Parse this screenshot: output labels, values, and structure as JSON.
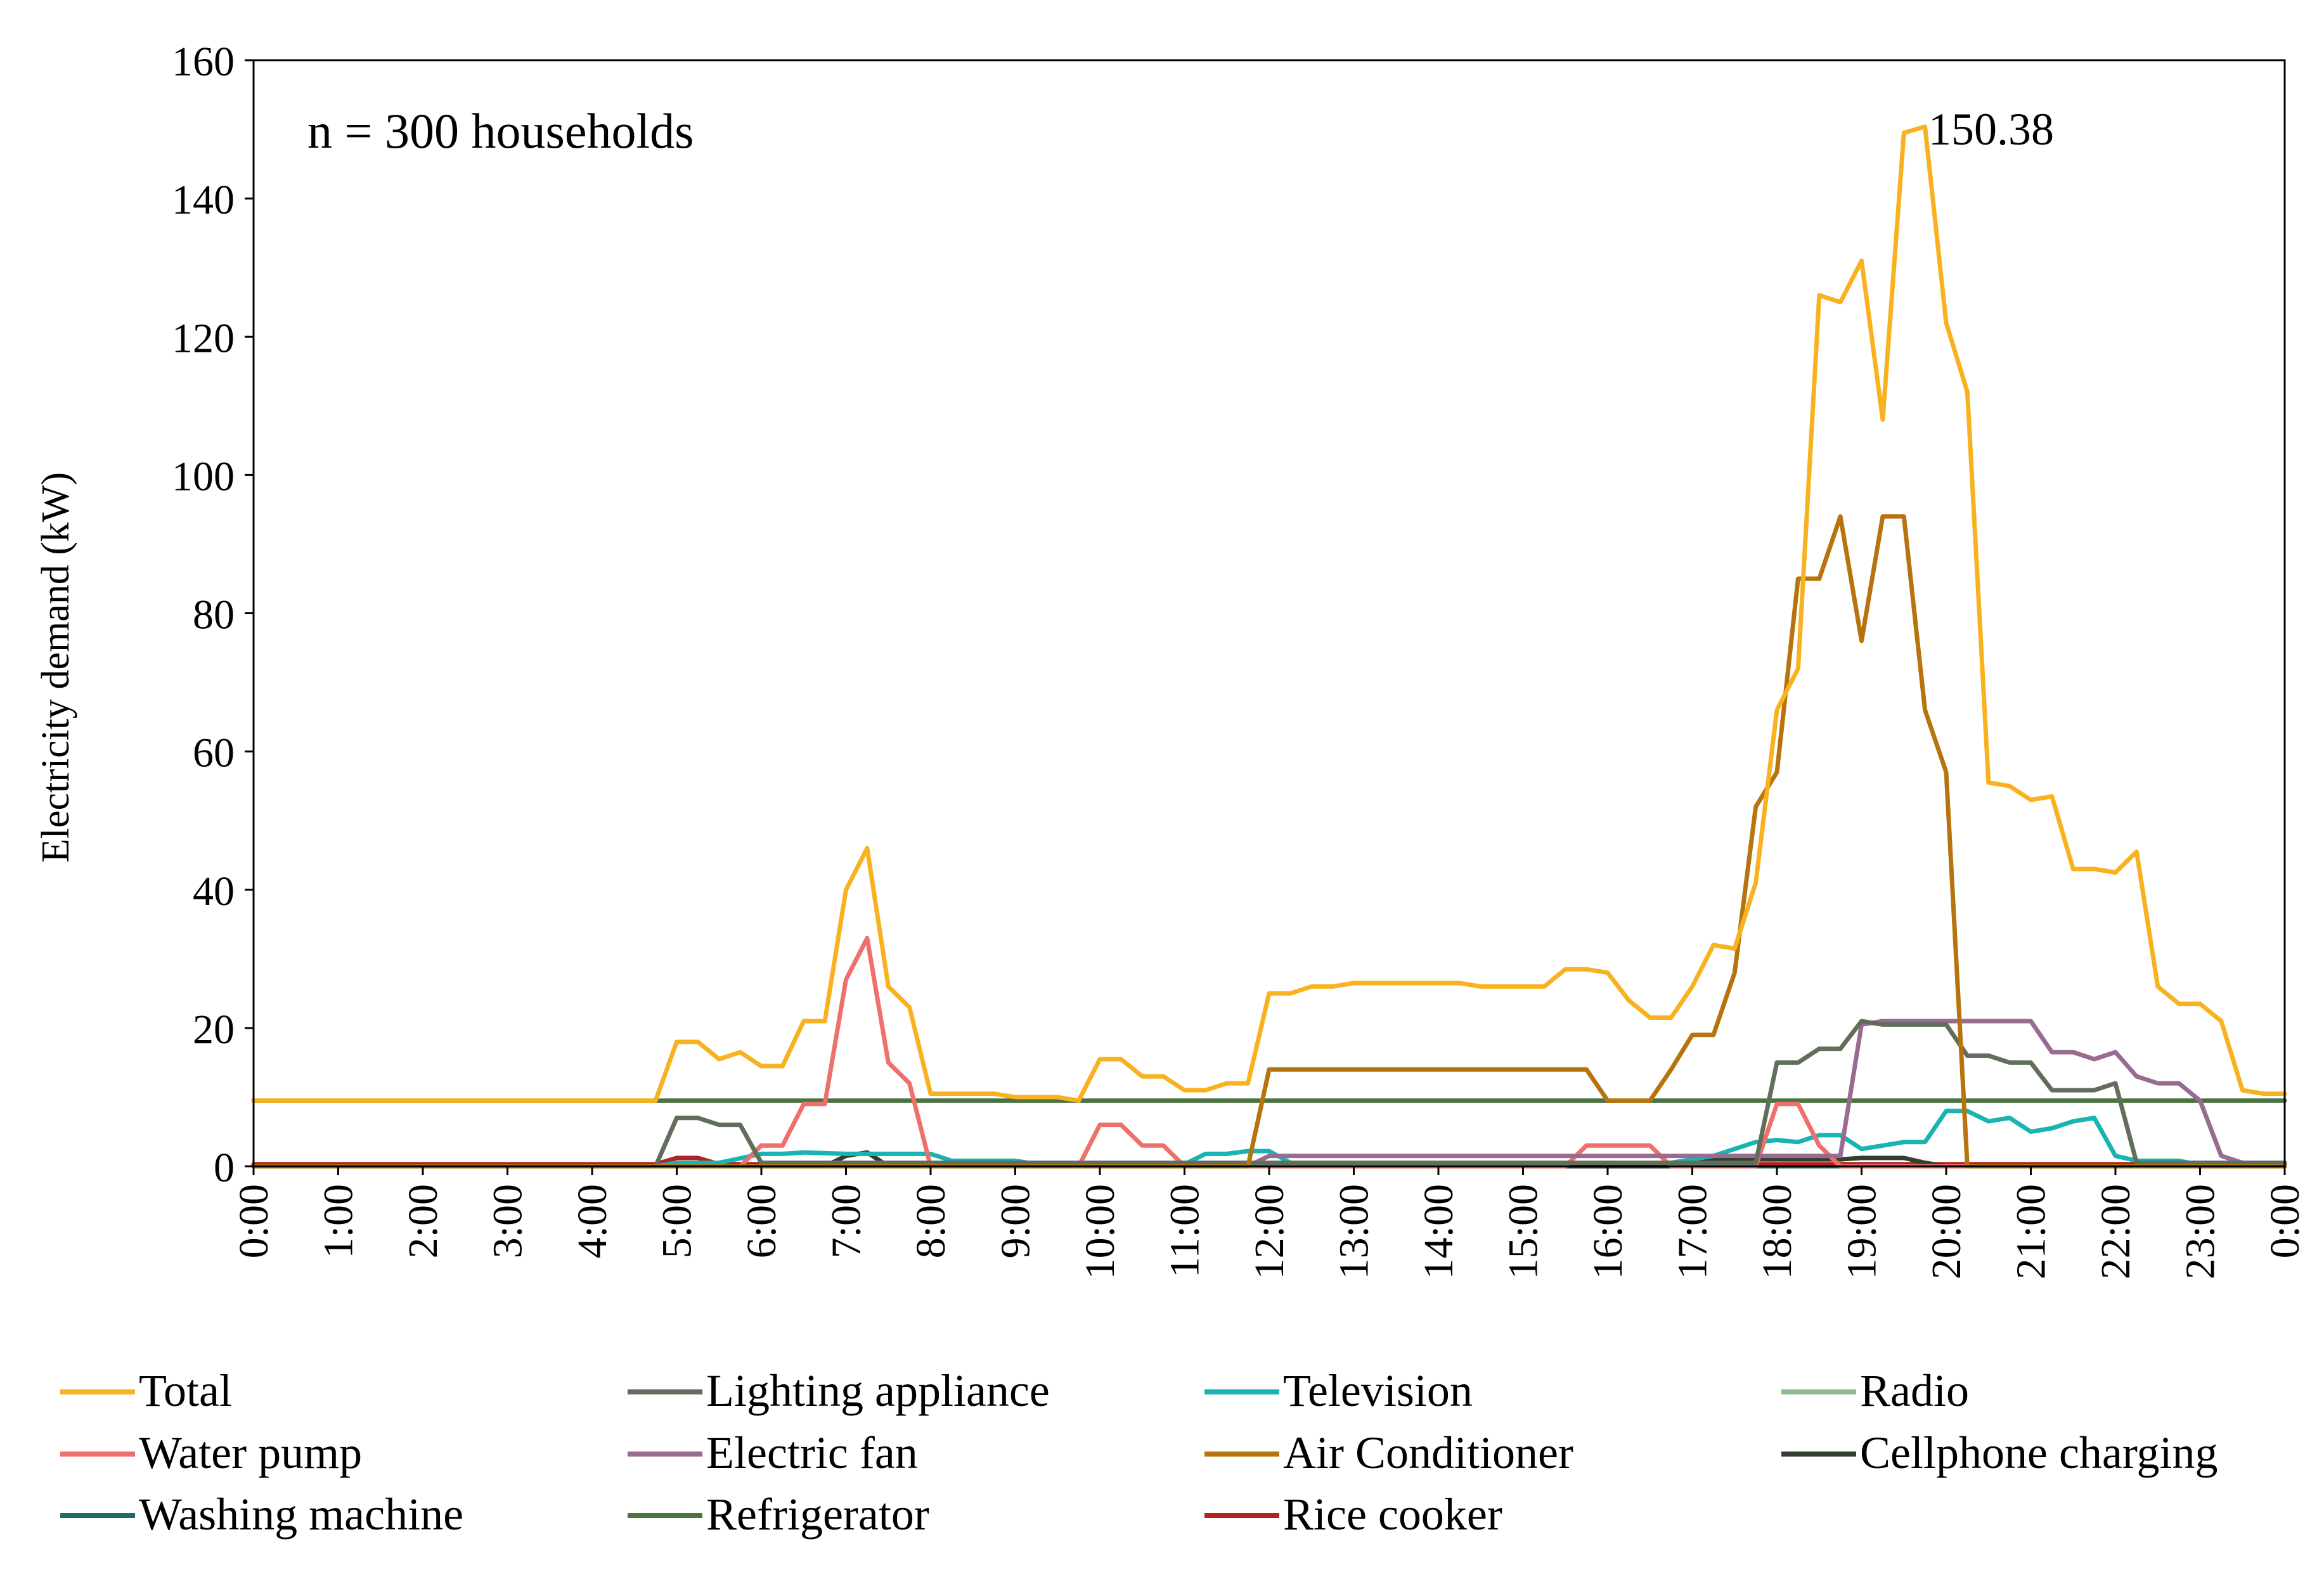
{
  "chart_data": {
    "type": "line",
    "title": "",
    "xlabel": "",
    "ylabel": "Electricity demand (kW)",
    "ylim": [
      0,
      160
    ],
    "yticks": [
      0,
      20,
      40,
      60,
      80,
      100,
      120,
      140,
      160
    ],
    "xticks": [
      "0:00",
      "1:00",
      "2:00",
      "3:00",
      "4:00",
      "5:00",
      "6:00",
      "7:00",
      "8:00",
      "9:00",
      "10:00",
      "11:00",
      "12:00",
      "13:00",
      "14:00",
      "15:00",
      "16:00",
      "17:00",
      "18:00",
      "19:00",
      "20:00",
      "21:00",
      "22:00",
      "23:00",
      "0:00"
    ],
    "x_unit": "hours",
    "x_range": [
      0,
      24
    ],
    "annotation": "n = 300 households",
    "peak_label": {
      "text": "150.38",
      "x": 19.25,
      "y": 150.38
    },
    "series": [
      {
        "name": "Refrigerator",
        "color": "#4a7340",
        "points": [
          [
            0,
            9.5
          ],
          [
            24,
            9.5
          ]
        ]
      },
      {
        "name": "Radio",
        "color": "#8fbc8f",
        "points": [
          [
            0,
            0.1
          ],
          [
            24,
            0.1
          ]
        ]
      },
      {
        "name": "Washing machine",
        "color": "#1f6b6b",
        "points": [
          [
            0,
            0
          ],
          [
            24,
            0
          ]
        ]
      },
      {
        "name": "Rice cooker",
        "color": "#b22222",
        "points": [
          [
            0,
            0.3
          ],
          [
            4.75,
            0.3
          ],
          [
            5,
            1.2
          ],
          [
            5.25,
            1.2
          ],
          [
            5.5,
            0.3
          ],
          [
            18.5,
            0.3
          ],
          [
            18.75,
            0.3
          ],
          [
            24,
            0.3
          ]
        ]
      },
      {
        "name": "Cellphone charging",
        "color": "#333f2e",
        "points": [
          [
            0,
            0
          ],
          [
            6.75,
            0
          ],
          [
            7,
            1.5
          ],
          [
            7.25,
            2
          ],
          [
            7.5,
            0
          ],
          [
            16.75,
            0
          ],
          [
            17,
            1
          ],
          [
            18.75,
            1
          ],
          [
            19,
            1.2
          ],
          [
            19.5,
            1.2
          ],
          [
            19.75,
            0.5
          ],
          [
            20,
            0
          ],
          [
            24,
            0
          ]
        ]
      },
      {
        "name": "Television",
        "color": "#1ab3b3",
        "points": [
          [
            0,
            0
          ],
          [
            4.75,
            0
          ],
          [
            5,
            0.5
          ],
          [
            5.5,
            0.5
          ],
          [
            6,
            1.8
          ],
          [
            6.25,
            1.8
          ],
          [
            6.5,
            2
          ],
          [
            7,
            1.8
          ],
          [
            8,
            1.8
          ],
          [
            8.25,
            0.8
          ],
          [
            9,
            0.8
          ],
          [
            9.25,
            0.3
          ],
          [
            11,
            0.3
          ],
          [
            11.25,
            1.8
          ],
          [
            11.5,
            1.8
          ],
          [
            11.75,
            2.2
          ],
          [
            12,
            2.2
          ],
          [
            12.25,
            0.5
          ],
          [
            16.75,
            0.5
          ],
          [
            17,
            1
          ],
          [
            17.25,
            1.5
          ],
          [
            17.5,
            2.5
          ],
          [
            17.75,
            3.5
          ],
          [
            18,
            3.8
          ],
          [
            18.25,
            3.5
          ],
          [
            18.5,
            4.5
          ],
          [
            18.75,
            4.5
          ],
          [
            19,
            2.5
          ],
          [
            19.25,
            3
          ],
          [
            19.5,
            3.5
          ],
          [
            19.75,
            3.5
          ],
          [
            20,
            8
          ],
          [
            20.25,
            8
          ],
          [
            20.5,
            6.5
          ],
          [
            20.75,
            7
          ],
          [
            21,
            5
          ],
          [
            21.25,
            5.5
          ],
          [
            21.5,
            6.5
          ],
          [
            21.75,
            7
          ],
          [
            22,
            1.5
          ],
          [
            22.25,
            0.8
          ],
          [
            22.75,
            0.8
          ],
          [
            23,
            0.2
          ],
          [
            24,
            0.2
          ]
        ]
      },
      {
        "name": "Water pump",
        "color": "#ef6f6c",
        "points": [
          [
            0,
            0
          ],
          [
            5.75,
            0
          ],
          [
            6,
            3
          ],
          [
            6.25,
            3
          ],
          [
            6.5,
            9
          ],
          [
            6.75,
            9
          ],
          [
            7,
            27
          ],
          [
            7.25,
            33
          ],
          [
            7.5,
            15
          ],
          [
            7.75,
            12
          ],
          [
            8,
            0
          ],
          [
            9.75,
            0
          ],
          [
            10,
            6
          ],
          [
            10.25,
            6
          ],
          [
            10.5,
            3
          ],
          [
            10.75,
            3
          ],
          [
            11,
            0
          ],
          [
            15.5,
            0
          ],
          [
            15.75,
            3
          ],
          [
            16.5,
            3
          ],
          [
            16.75,
            0
          ],
          [
            17.75,
            0
          ],
          [
            18,
            9
          ],
          [
            18.25,
            9
          ],
          [
            18.5,
            3
          ],
          [
            18.75,
            0
          ],
          [
            24,
            0
          ]
        ]
      },
      {
        "name": "Electric fan",
        "color": "#996b91",
        "points": [
          [
            0,
            0
          ],
          [
            11.75,
            0
          ],
          [
            12,
            1.5
          ],
          [
            17.75,
            1.5
          ],
          [
            18.75,
            1.5
          ],
          [
            19,
            20.5
          ],
          [
            19.25,
            21
          ],
          [
            21,
            21
          ],
          [
            21.25,
            16.5
          ],
          [
            21.5,
            16.5
          ],
          [
            21.75,
            15.5
          ],
          [
            22,
            16.5
          ],
          [
            22.25,
            13
          ],
          [
            22.5,
            12
          ],
          [
            22.75,
            12
          ],
          [
            23,
            9.5
          ],
          [
            23.25,
            1.5
          ],
          [
            23.5,
            0.5
          ],
          [
            24,
            0.5
          ]
        ]
      },
      {
        "name": "Lighting appliance",
        "color": "#616e5c",
        "points": [
          [
            0,
            0
          ],
          [
            4.75,
            0
          ],
          [
            5,
            7
          ],
          [
            5.25,
            7
          ],
          [
            5.5,
            6
          ],
          [
            5.75,
            6
          ],
          [
            6,
            0.5
          ],
          [
            17.75,
            0.5
          ],
          [
            18,
            15
          ],
          [
            18.25,
            15
          ],
          [
            18.5,
            17
          ],
          [
            18.75,
            17
          ],
          [
            19,
            21
          ],
          [
            19.25,
            20.5
          ],
          [
            19.5,
            20.5
          ],
          [
            20,
            20.5
          ],
          [
            20.25,
            16
          ],
          [
            20.5,
            16
          ],
          [
            20.75,
            15
          ],
          [
            21,
            15
          ],
          [
            21.25,
            11
          ],
          [
            21.75,
            11
          ],
          [
            22,
            12
          ],
          [
            22.25,
            0.5
          ],
          [
            24,
            0.5
          ]
        ]
      },
      {
        "name": "Air Conditioner",
        "color": "#b8740c",
        "points": [
          [
            0,
            0
          ],
          [
            11.75,
            0
          ],
          [
            12,
            14
          ],
          [
            15.75,
            14
          ],
          [
            16,
            9.5
          ],
          [
            16.5,
            9.5
          ],
          [
            16.75,
            14
          ],
          [
            17,
            19
          ],
          [
            17.25,
            19
          ],
          [
            17.5,
            28
          ],
          [
            17.75,
            52
          ],
          [
            18,
            57
          ],
          [
            18.25,
            85
          ],
          [
            18.5,
            85
          ],
          [
            18.75,
            94
          ],
          [
            19,
            76
          ],
          [
            19.25,
            94
          ],
          [
            19.5,
            94
          ],
          [
            19.75,
            66
          ],
          [
            20,
            57
          ],
          [
            20.25,
            0
          ],
          [
            24,
            0
          ]
        ]
      },
      {
        "name": "Total",
        "color": "#f9b21f",
        "points": [
          [
            0,
            9.5
          ],
          [
            4.75,
            9.5
          ],
          [
            5,
            18
          ],
          [
            5.25,
            18
          ],
          [
            5.5,
            15.5
          ],
          [
            5.75,
            16.5
          ],
          [
            6,
            14.5
          ],
          [
            6.25,
            14.5
          ],
          [
            6.5,
            21
          ],
          [
            6.75,
            21
          ],
          [
            7,
            40
          ],
          [
            7.25,
            46
          ],
          [
            7.5,
            26
          ],
          [
            7.75,
            23
          ],
          [
            8,
            10.5
          ],
          [
            8.75,
            10.5
          ],
          [
            9,
            10
          ],
          [
            9.5,
            10
          ],
          [
            9.75,
            9.5
          ],
          [
            10,
            15.5
          ],
          [
            10.25,
            15.5
          ],
          [
            10.5,
            13
          ],
          [
            10.75,
            13
          ],
          [
            11,
            11
          ],
          [
            11.25,
            11
          ],
          [
            11.5,
            12
          ],
          [
            11.75,
            12
          ],
          [
            12,
            25
          ],
          [
            12.25,
            25
          ],
          [
            12.5,
            26
          ],
          [
            12.75,
            26
          ],
          [
            13,
            26.5
          ],
          [
            14.25,
            26.5
          ],
          [
            14.5,
            26
          ],
          [
            15.25,
            26
          ],
          [
            15.5,
            28.5
          ],
          [
            15.75,
            28.5
          ],
          [
            16,
            28
          ],
          [
            16.25,
            24
          ],
          [
            16.5,
            21.5
          ],
          [
            16.75,
            21.5
          ],
          [
            17,
            26
          ],
          [
            17.25,
            32
          ],
          [
            17.5,
            31.5
          ],
          [
            17.75,
            41
          ],
          [
            18,
            66
          ],
          [
            18.25,
            72
          ],
          [
            18.5,
            126
          ],
          [
            18.75,
            125
          ],
          [
            19,
            131
          ],
          [
            19.25,
            108
          ],
          [
            19.5,
            149.5
          ],
          [
            19.75,
            150.38
          ],
          [
            20,
            122
          ],
          [
            20.25,
            112
          ],
          [
            20.5,
            55.5
          ],
          [
            20.75,
            55
          ],
          [
            21,
            53
          ],
          [
            21.25,
            53.5
          ],
          [
            21.5,
            43
          ],
          [
            21.75,
            43
          ],
          [
            22,
            42.5
          ],
          [
            22.25,
            45.5
          ],
          [
            22.5,
            26
          ],
          [
            22.75,
            23.5
          ],
          [
            23,
            23.5
          ],
          [
            23.25,
            21
          ],
          [
            23.5,
            11
          ],
          [
            23.75,
            10.5
          ],
          [
            24,
            10.5
          ]
        ]
      }
    ]
  },
  "legend": {
    "rows": [
      [
        "Total",
        "Lighting appliance",
        "Television",
        "Radio"
      ],
      [
        "Water pump",
        "Electric fan",
        "Air Conditioner",
        "Cellphone charging"
      ],
      [
        "Washing machine",
        "Refrigerator",
        "Rice cooker"
      ]
    ]
  }
}
